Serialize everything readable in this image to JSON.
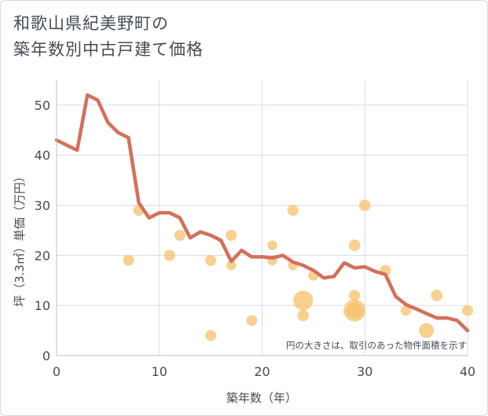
{
  "title_lines": [
    "和歌山県紀美野町の",
    "築年数別中古戸建て価格"
  ],
  "chart_data": {
    "type": "scatter",
    "xlabel": "築年数（年）",
    "ylabel": "坪（3.3㎡）単価（万円）",
    "xlim": [
      0,
      40
    ],
    "ylim": [
      0,
      55
    ],
    "xticks": [
      0,
      10,
      20,
      30,
      40
    ],
    "yticks": [
      0,
      10,
      20,
      30,
      40,
      50
    ],
    "grid": true,
    "annotation": "円の大きさは、取引のあった物件面積を示す",
    "colors": {
      "line": "#d4705a",
      "bubble": "#f5c06a",
      "grid": "#d6dde4",
      "axis_text": "#444c56"
    },
    "series": [
      {
        "type": "line",
        "x": [
          0,
          1,
          2,
          3,
          4,
          5,
          6,
          7,
          8,
          9,
          10,
          11,
          12,
          13,
          14,
          15,
          16,
          17,
          18,
          19,
          20,
          21,
          22,
          23,
          24,
          25,
          26,
          27,
          28,
          29,
          30,
          31,
          32,
          33,
          34,
          35,
          36,
          37,
          38,
          39,
          40
        ],
        "y": [
          43,
          42,
          41,
          52,
          51,
          46.5,
          44.5,
          43.5,
          30.5,
          27.5,
          28.5,
          28.5,
          27.5,
          23.5,
          24.7,
          24,
          23,
          18.8,
          21,
          19.7,
          19.7,
          19.5,
          20,
          18.7,
          18,
          17,
          15.5,
          15.8,
          18.5,
          17.5,
          17.7,
          16.8,
          16.2,
          11.8,
          10.2,
          9.3,
          8.4,
          7.5,
          7.5,
          7,
          5
        ]
      },
      {
        "type": "bubble",
        "points": [
          {
            "x": 7,
            "y": 19,
            "size": 1
          },
          {
            "x": 8,
            "y": 29,
            "size": 1
          },
          {
            "x": 11,
            "y": 20,
            "size": 1
          },
          {
            "x": 12,
            "y": 24,
            "size": 1
          },
          {
            "x": 15,
            "y": 19,
            "size": 1
          },
          {
            "x": 15,
            "y": 4,
            "size": 1
          },
          {
            "x": 17,
            "y": 24,
            "size": 1
          },
          {
            "x": 17,
            "y": 18,
            "size": 0.8
          },
          {
            "x": 19,
            "y": 7,
            "size": 1
          },
          {
            "x": 21,
            "y": 22,
            "size": 0.8
          },
          {
            "x": 21,
            "y": 19,
            "size": 0.8
          },
          {
            "x": 23,
            "y": 29,
            "size": 1
          },
          {
            "x": 23,
            "y": 18,
            "size": 0.8
          },
          {
            "x": 24,
            "y": 11,
            "size": 3.2
          },
          {
            "x": 24,
            "y": 8,
            "size": 1.1
          },
          {
            "x": 25,
            "y": 16,
            "size": 0.9
          },
          {
            "x": 29,
            "y": 22,
            "size": 1.1
          },
          {
            "x": 29,
            "y": 12,
            "size": 1
          },
          {
            "x": 29,
            "y": 9,
            "size": 4
          },
          {
            "x": 29,
            "y": 9,
            "size": 2
          },
          {
            "x": 30,
            "y": 30,
            "size": 1.1
          },
          {
            "x": 32,
            "y": 17,
            "size": 1
          },
          {
            "x": 34,
            "y": 9,
            "size": 0.9
          },
          {
            "x": 36,
            "y": 5,
            "size": 1.8
          },
          {
            "x": 37,
            "y": 12,
            "size": 1.1
          },
          {
            "x": 40,
            "y": 9,
            "size": 1
          }
        ]
      }
    ]
  }
}
